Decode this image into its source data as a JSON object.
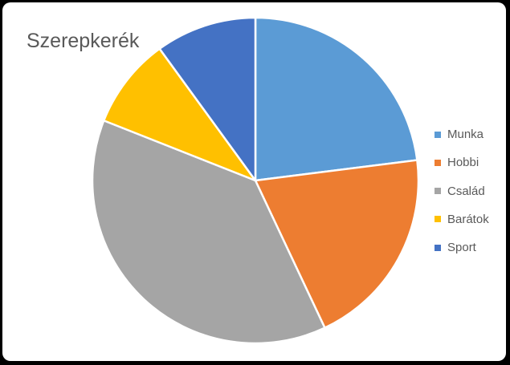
{
  "chart_data": {
    "type": "pie",
    "title": "Szerepkerék",
    "categories": [
      "Munka",
      "Hobbi",
      "Család",
      "Barátok",
      "Sport"
    ],
    "values": [
      23,
      20,
      38,
      9,
      10
    ],
    "colors": [
      "#5B9BD5",
      "#ED7D31",
      "#A5A5A5",
      "#FFC000",
      "#4472C4"
    ],
    "start_angle_deg": 0,
    "direction": "clockwise",
    "legend_position": "right",
    "slice_border_color": "#FFFFFF"
  }
}
